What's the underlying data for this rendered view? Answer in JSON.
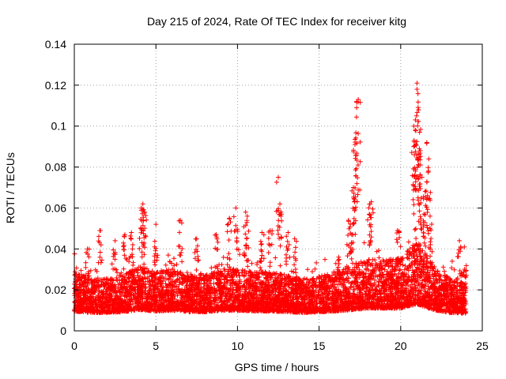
{
  "chart_data": {
    "type": "scatter",
    "title": "Day 215 of 2024, Rate Of TEC Index for receiver kitg",
    "xlabel": "GPS time / hours",
    "ylabel": "ROTI / TECUs",
    "xlim": [
      0,
      25
    ],
    "ylim": [
      0,
      0.14
    ],
    "x_ticks": [
      "0",
      "5",
      "10",
      "15",
      "20",
      "25"
    ],
    "y_ticks": [
      "0",
      "0.02",
      "0.04",
      "0.06",
      "0.08",
      "0.1",
      "0.12",
      "0.14"
    ],
    "grid": true,
    "marker": "plus",
    "color": "#ff0000",
    "series": [
      {
        "name": "kitg",
        "x_range": [
          0,
          24
        ],
        "base_level": [
          [
            0.0,
            0.016
          ],
          [
            1.0,
            0.014
          ],
          [
            2.0,
            0.014
          ],
          [
            3.0,
            0.015
          ],
          [
            4.0,
            0.018
          ],
          [
            5.0,
            0.016
          ],
          [
            6.0,
            0.017
          ],
          [
            7.0,
            0.015
          ],
          [
            8.0,
            0.015
          ],
          [
            9.0,
            0.017
          ],
          [
            10.0,
            0.017
          ],
          [
            11.0,
            0.016
          ],
          [
            12.0,
            0.016
          ],
          [
            13.0,
            0.015
          ],
          [
            14.0,
            0.014
          ],
          [
            15.0,
            0.015
          ],
          [
            16.0,
            0.016
          ],
          [
            17.0,
            0.018
          ],
          [
            18.0,
            0.02
          ],
          [
            19.0,
            0.02
          ],
          [
            20.0,
            0.02
          ],
          [
            21.0,
            0.026
          ],
          [
            22.0,
            0.018
          ],
          [
            23.0,
            0.014
          ],
          [
            24.0,
            0.013
          ]
        ],
        "notable_points": [
          [
            0.8,
            0.04
          ],
          [
            1.6,
            0.049
          ],
          [
            2.5,
            0.044
          ],
          [
            3.1,
            0.047
          ],
          [
            3.5,
            0.048
          ],
          [
            4.1,
            0.06
          ],
          [
            4.2,
            0.062
          ],
          [
            4.3,
            0.058
          ],
          [
            5.0,
            0.052
          ],
          [
            6.5,
            0.054
          ],
          [
            7.5,
            0.045
          ],
          [
            8.7,
            0.047
          ],
          [
            9.5,
            0.055
          ],
          [
            9.9,
            0.06
          ],
          [
            10.5,
            0.058
          ],
          [
            10.6,
            0.056
          ],
          [
            11.5,
            0.048
          ],
          [
            12.0,
            0.049
          ],
          [
            12.5,
            0.075
          ],
          [
            12.6,
            0.062
          ],
          [
            13.1,
            0.048
          ],
          [
            13.5,
            0.045
          ],
          [
            16.2,
            0.036
          ],
          [
            16.8,
            0.054
          ],
          [
            17.0,
            0.047
          ],
          [
            17.1,
            0.07
          ],
          [
            17.2,
            0.091
          ],
          [
            17.3,
            0.109
          ],
          [
            17.3,
            0.112
          ],
          [
            17.4,
            0.113
          ],
          [
            18.1,
            0.062
          ],
          [
            18.2,
            0.063
          ],
          [
            19.8,
            0.049
          ],
          [
            20.8,
            0.1
          ],
          [
            20.9,
            0.103
          ],
          [
            20.9,
            0.078
          ],
          [
            21.0,
            0.118
          ],
          [
            21.0,
            0.121
          ],
          [
            21.1,
            0.108
          ],
          [
            21.1,
            0.084
          ],
          [
            21.2,
            0.088
          ],
          [
            21.3,
            0.075
          ],
          [
            21.5,
            0.068
          ],
          [
            21.6,
            0.092
          ],
          [
            21.7,
            0.078
          ],
          [
            21.8,
            0.056
          ],
          [
            23.6,
            0.044
          ],
          [
            23.9,
            0.041
          ]
        ]
      }
    ]
  }
}
